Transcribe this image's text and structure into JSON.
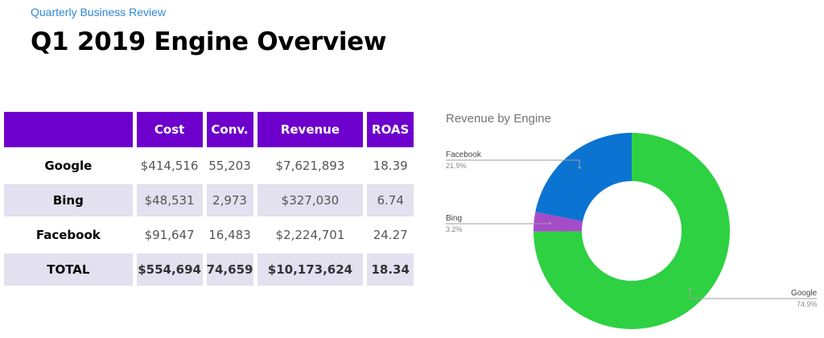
{
  "header": {
    "subtitle": "Quarterly Business Review",
    "title": "Q1 2019 Engine Overview"
  },
  "table": {
    "columns": [
      "",
      "Cost",
      "Conv.",
      "Revenue",
      "ROAS"
    ],
    "rows": [
      {
        "engine": "Google",
        "cost": "$414,516",
        "conv": "55,203",
        "revenue": "$7,621,893",
        "roas": "18.39"
      },
      {
        "engine": "Bing",
        "cost": "$48,531",
        "conv": "2,973",
        "revenue": "$327,030",
        "roas": "6.74"
      },
      {
        "engine": "Facebook",
        "cost": "$91,647",
        "conv": "16,483",
        "revenue": "$2,224,701",
        "roas": "24.27"
      }
    ],
    "total": {
      "engine": "TOTAL",
      "cost": "$554,694",
      "conv": "74,659",
      "revenue": "$10,173,624",
      "roas": "18.34"
    }
  },
  "chart_data": {
    "type": "pie",
    "style": "donut",
    "title": "Revenue by Engine",
    "legend": "callout labels",
    "slices": [
      {
        "name": "Google",
        "percent": 74.9,
        "label": "74.9%",
        "color": "#2ed142"
      },
      {
        "name": "Bing",
        "percent": 3.2,
        "label": "3.2%",
        "color": "#a64cc9"
      },
      {
        "name": "Facebook",
        "percent": 21.9,
        "label": "21.9%",
        "color": "#0b73d1"
      }
    ]
  }
}
